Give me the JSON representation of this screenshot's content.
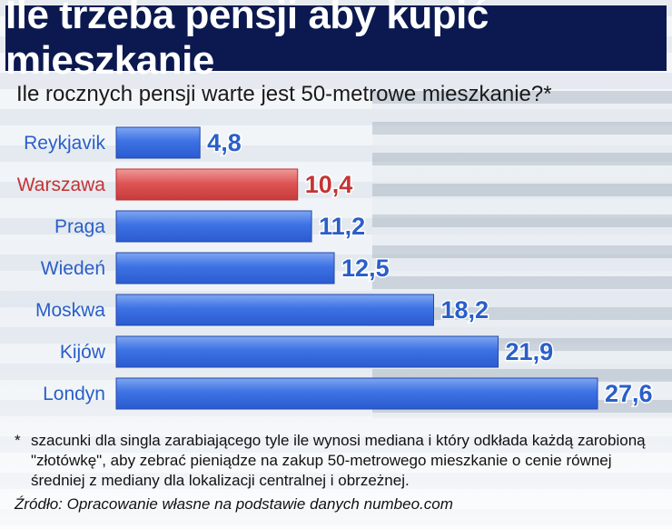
{
  "header": {
    "title": "Ile trzeba pensji aby kupić mieszkanie"
  },
  "subtitle": "Ile rocznych pensji warte jest 50-metrowe mieszkanie?*",
  "chart_data": {
    "type": "bar",
    "orientation": "horizontal",
    "categories": [
      "Reykjavik",
      "Warszawa",
      "Praga",
      "Wiedeń",
      "Moskwa",
      "Kijów",
      "Londyn"
    ],
    "values": [
      4.8,
      10.4,
      11.2,
      12.5,
      18.2,
      21.9,
      27.6
    ],
    "value_labels": [
      "4,8",
      "10,4",
      "11,2",
      "12,5",
      "18,2",
      "21,9",
      "27,6"
    ],
    "highlight": "Warszawa",
    "colors": {
      "default": "#3a6fe0",
      "highlight": "#d84b4b",
      "default_label": "#2a5fc8",
      "highlight_label": "#c43434"
    },
    "xlim": [
      0,
      27.6
    ],
    "grid": false
  },
  "footnote": {
    "marker": "*",
    "text": "szacunki dla singla zarabiającego tyle ile wynosi mediana i który odkłada każdą zarobioną \"złotówkę\", aby zebrać pieniądze na zakup 50-metrowego mieszkanie o cenie równej średniej z mediany dla lokalizacji centralnej i obrzeżnej."
  },
  "source": "Źródło: Opracowanie własne na podstawie danych numbeo.com"
}
